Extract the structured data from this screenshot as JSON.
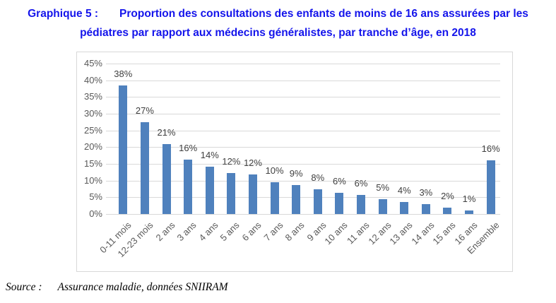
{
  "title": {
    "label": "Graphique 5 :",
    "line1": "Proportion des consultations des enfants de moins de 16 ans assurées par les",
    "line2": "pédiatres par rapport aux médecins généralistes, par tranche d’âge, en 2018"
  },
  "source": {
    "prefix": "Source :",
    "text": "Assurance maladie, données SNIIRAM"
  },
  "colors": {
    "title_blue": "#1414EB",
    "bar_blue": "#4F81BD",
    "gridline": "#D9D9D9",
    "axis_text": "#595959",
    "label_text": "#3F3F3F",
    "chart_border": "#D8D8D8"
  },
  "chart_data": {
    "type": "bar",
    "title": "Graphique 5 : Proportion des consultations des enfants de moins de 16 ans assurées par les pédiatres par rapport aux médecins généralistes, par tranche d’âge, en 2018",
    "xlabel": "",
    "ylabel": "",
    "grid": true,
    "legend": null,
    "ylim": [
      0,
      45
    ],
    "y_ticks": [
      "45%",
      "40%",
      "35%",
      "30%",
      "25%",
      "20%",
      "15%",
      "10%",
      "5%",
      "0%"
    ],
    "categories": [
      "0-11 mois",
      "12-23 mois",
      "2 ans",
      "3 ans",
      "4 ans",
      "5 ans",
      "6 ans",
      "7 ans",
      "8 ans",
      "9 ans",
      "10 ans",
      "11 ans",
      "12 ans",
      "13 ans",
      "14 ans",
      "15 ans",
      "16 ans",
      "Ensemble"
    ],
    "values": [
      38.4,
      27.4,
      20.9,
      16.3,
      14.1,
      12.2,
      11.9,
      9.6,
      8.7,
      7.5,
      6.4,
      5.7,
      4.5,
      3.7,
      2.9,
      2.0,
      1.1,
      16.1
    ],
    "value_labels": [
      "38%",
      "27%",
      "21%",
      "16%",
      "14%",
      "12%",
      "12%",
      "10%",
      "9%",
      "8%",
      "6%",
      "6%",
      "5%",
      "4%",
      "3%",
      "2%",
      "1%",
      "16%"
    ]
  }
}
